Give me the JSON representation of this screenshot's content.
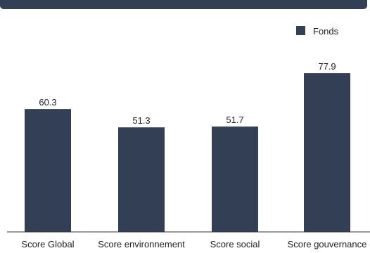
{
  "colors": {
    "banner": "#333f55",
    "bar": "#333f55",
    "axis": "#333333"
  },
  "chart_data": {
    "type": "bar",
    "categories": [
      "Score Global",
      "Score environnement",
      "Score social",
      "Score gouvernance"
    ],
    "series": [
      {
        "name": "Fonds",
        "values": [
          60.3,
          51.3,
          51.7,
          77.9
        ]
      }
    ],
    "value_labels": [
      "60.3",
      "51.3",
      "51.7",
      "77.9"
    ],
    "ylim": [
      0,
      100
    ],
    "legend_position": "top-right",
    "grid": false
  }
}
